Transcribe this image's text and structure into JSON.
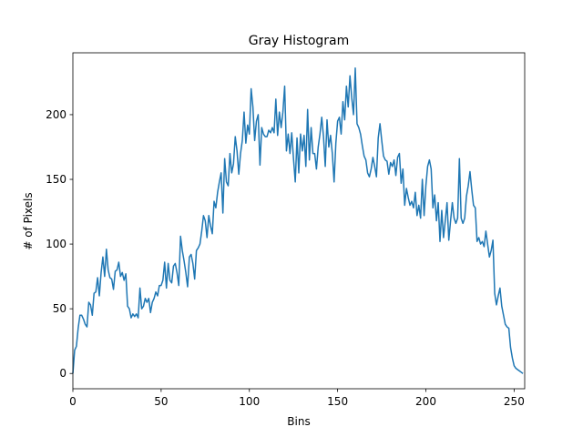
{
  "chart_data": {
    "type": "line",
    "title": "Gray Histogram",
    "xlabel": "Bins",
    "ylabel": "# of Pixels",
    "color": "#1f77b4",
    "xlim": [
      0,
      256
    ],
    "ylim": [
      -11.8,
      247.8
    ],
    "xticks": [
      0,
      50,
      100,
      150,
      200,
      250
    ],
    "yticks": [
      0,
      50,
      100,
      150,
      200
    ],
    "grid": false,
    "x": [
      0,
      1,
      2,
      3,
      4,
      5,
      6,
      7,
      8,
      9,
      10,
      11,
      12,
      13,
      14,
      15,
      16,
      17,
      18,
      19,
      20,
      21,
      22,
      23,
      24,
      25,
      26,
      27,
      28,
      29,
      30,
      31,
      32,
      33,
      34,
      35,
      36,
      37,
      38,
      39,
      40,
      41,
      42,
      43,
      44,
      45,
      46,
      47,
      48,
      49,
      50,
      51,
      52,
      53,
      54,
      55,
      56,
      57,
      58,
      59,
      60,
      61,
      62,
      63,
      64,
      65,
      66,
      67,
      68,
      69,
      70,
      71,
      72,
      73,
      74,
      75,
      76,
      77,
      78,
      79,
      80,
      81,
      82,
      83,
      84,
      85,
      86,
      87,
      88,
      89,
      90,
      91,
      92,
      93,
      94,
      95,
      96,
      97,
      98,
      99,
      100,
      101,
      102,
      103,
      104,
      105,
      106,
      107,
      108,
      109,
      110,
      111,
      112,
      113,
      114,
      115,
      116,
      117,
      118,
      119,
      120,
      121,
      122,
      123,
      124,
      125,
      126,
      127,
      128,
      129,
      130,
      131,
      132,
      133,
      134,
      135,
      136,
      137,
      138,
      139,
      140,
      141,
      142,
      143,
      144,
      145,
      146,
      147,
      148,
      149,
      150,
      151,
      152,
      153,
      154,
      155,
      156,
      157,
      158,
      159,
      160,
      161,
      162,
      163,
      164,
      165,
      166,
      167,
      168,
      169,
      170,
      171,
      172,
      173,
      174,
      175,
      176,
      177,
      178,
      179,
      180,
      181,
      182,
      183,
      184,
      185,
      186,
      187,
      188,
      189,
      190,
      191,
      192,
      193,
      194,
      195,
      196,
      197,
      198,
      199,
      200,
      201,
      202,
      203,
      204,
      205,
      206,
      207,
      208,
      209,
      210,
      211,
      212,
      213,
      214,
      215,
      216,
      217,
      218,
      219,
      220,
      221,
      222,
      223,
      224,
      225,
      226,
      227,
      228,
      229,
      230,
      231,
      232,
      233,
      234,
      235,
      236,
      237,
      238,
      239,
      240,
      241,
      242,
      243,
      244,
      245,
      246,
      247,
      248,
      249,
      250,
      251,
      252,
      253,
      254,
      255
    ],
    "values": [
      0,
      18,
      21,
      35,
      45,
      45,
      42,
      38,
      36,
      55,
      53,
      45,
      62,
      63,
      74,
      60,
      78,
      90,
      75,
      96,
      80,
      74,
      73,
      65,
      79,
      80,
      86,
      75,
      78,
      72,
      77,
      52,
      50,
      43,
      46,
      44,
      46,
      43,
      66,
      50,
      52,
      58,
      55,
      58,
      47,
      55,
      58,
      63,
      60,
      68,
      68,
      72,
      86,
      66,
      85,
      72,
      70,
      83,
      85,
      78,
      68,
      106,
      95,
      87,
      78,
      67,
      90,
      92,
      85,
      73,
      95,
      97,
      100,
      110,
      122,
      118,
      105,
      122,
      114,
      108,
      133,
      128,
      140,
      148,
      155,
      124,
      166,
      148,
      145,
      170,
      155,
      162,
      183,
      172,
      154,
      170,
      180,
      202,
      178,
      192,
      185,
      220,
      206,
      180,
      195,
      200,
      161,
      190,
      185,
      183,
      183,
      188,
      186,
      190,
      186,
      212,
      184,
      202,
      190,
      202,
      222,
      172,
      185,
      170,
      186,
      166,
      148,
      182,
      155,
      185,
      172,
      184,
      160,
      204,
      165,
      190,
      170,
      170,
      158,
      175,
      185,
      198,
      183,
      160,
      196,
      175,
      184,
      170,
      148,
      178,
      195,
      198,
      185,
      210,
      196,
      222,
      206,
      230,
      213,
      200,
      236,
      193,
      190,
      185,
      176,
      168,
      165,
      155,
      152,
      158,
      167,
      160,
      152,
      182,
      193,
      180,
      168,
      165,
      164,
      154,
      163,
      160,
      165,
      153,
      167,
      170,
      147,
      158,
      130,
      143,
      136,
      130,
      133,
      128,
      140,
      122,
      130,
      120,
      150,
      122,
      145,
      160,
      165,
      158,
      128,
      138,
      118,
      132,
      102,
      126,
      105,
      118,
      132,
      103,
      118,
      132,
      120,
      116,
      120,
      166,
      120,
      116,
      120,
      137,
      145,
      156,
      142,
      130,
      128,
      102,
      105,
      100,
      102,
      98,
      110,
      100,
      90,
      95,
      103,
      62,
      53,
      60,
      66,
      52,
      45,
      38,
      36,
      35,
      20,
      12,
      6,
      4,
      3,
      2,
      1,
      0
    ]
  }
}
